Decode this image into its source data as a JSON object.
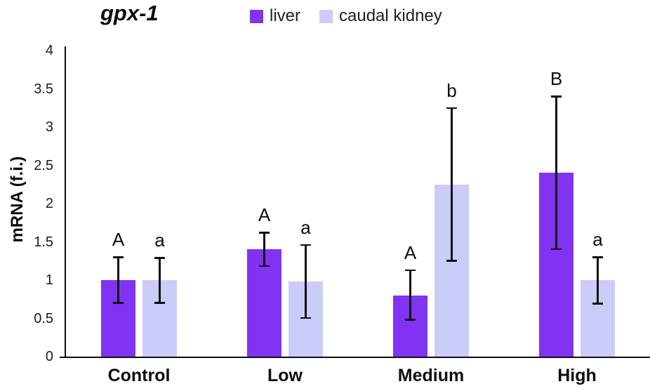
{
  "chart_data": {
    "type": "bar",
    "title": "gpx-1",
    "ylabel": "mRNA (f.i.)",
    "categories": [
      "Control",
      "Low",
      "Medium",
      "High"
    ],
    "series": [
      {
        "name": "liver",
        "color": "#8133f1",
        "values": [
          1.0,
          1.4,
          0.8,
          2.4
        ],
        "error_minus": [
          0.3,
          0.22,
          0.32,
          1.0
        ],
        "error_plus": [
          0.3,
          0.22,
          0.33,
          1.0
        ],
        "sig_letters": [
          "A",
          "A",
          "A",
          "B"
        ]
      },
      {
        "name": "caudal kidney",
        "color": "#cbccf8",
        "values": [
          1.0,
          0.98,
          2.25,
          1.0
        ],
        "error_minus": [
          0.3,
          0.48,
          1.0,
          0.31
        ],
        "error_plus": [
          0.29,
          0.48,
          1.0,
          0.3
        ],
        "sig_letters": [
          "a",
          "a",
          "b",
          "a"
        ]
      }
    ],
    "ylim": [
      0,
      4
    ],
    "ytick_step": 0.5,
    "ytick_labels": [
      "0",
      "0.5",
      "1",
      "1.5",
      "2",
      "2.5",
      "3",
      "3.5",
      "4"
    ],
    "grid": false,
    "legend_position": "top",
    "axis_color": "#0d0d0d",
    "error_bar_color": "#0f0f0f"
  }
}
